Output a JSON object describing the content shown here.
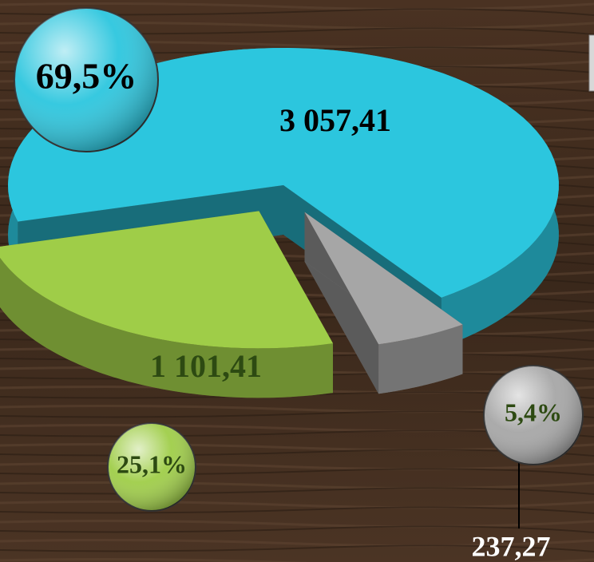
{
  "chart_data": {
    "type": "pie3d",
    "values": [
      3057.41,
      1101.41,
      237.27
    ],
    "value_labels": [
      "3 057,41",
      "1 101,41",
      "237,27"
    ],
    "percentages": [
      69.5,
      25.1,
      5.4
    ],
    "percentage_labels": [
      "69,5%",
      "25,1%",
      "5,4%"
    ],
    "colors": [
      "#2cc6de",
      "#9fcd48",
      "#a6a6a6"
    ]
  }
}
